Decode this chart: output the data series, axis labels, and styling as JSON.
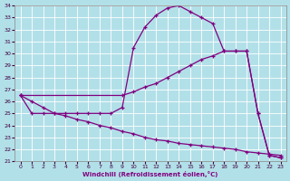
{
  "xlabel": "Windchill (Refroidissement éolien,°C)",
  "bg_color": "#b2e0e8",
  "line_color": "#800080",
  "grid_color": "#ffffff",
  "xlim": [
    -0.5,
    23.5
  ],
  "ylim": [
    21,
    34
  ],
  "yticks": [
    21,
    22,
    23,
    24,
    25,
    26,
    27,
    28,
    29,
    30,
    31,
    32,
    33,
    34
  ],
  "xticks": [
    0,
    1,
    2,
    3,
    4,
    5,
    6,
    7,
    8,
    9,
    10,
    11,
    12,
    13,
    14,
    15,
    16,
    17,
    18,
    19,
    20,
    21,
    22,
    23
  ],
  "lines": [
    {
      "x": [
        0,
        1,
        2,
        3,
        4,
        5,
        6,
        7,
        8,
        9,
        10,
        11,
        12,
        13,
        14,
        15,
        16,
        17,
        18,
        19,
        20,
        21,
        22,
        23
      ],
      "y": [
        26.5,
        25.0,
        25.0,
        25.0,
        25.0,
        25.0,
        25.0,
        25.0,
        25.0,
        25.5,
        30.5,
        32.2,
        33.2,
        33.8,
        34.0,
        33.5,
        33.0,
        32.5,
        30.2,
        30.2,
        30.2,
        25.0,
        21.5,
        21.3
      ]
    },
    {
      "x": [
        0,
        9,
        10,
        11,
        12,
        13,
        14,
        15,
        16,
        17,
        18,
        19,
        20,
        21,
        22,
        23
      ],
      "y": [
        26.5,
        26.5,
        26.8,
        27.2,
        27.5,
        28.0,
        28.5,
        29.0,
        29.5,
        29.8,
        30.2,
        30.2,
        30.2,
        25.0,
        21.5,
        21.3
      ]
    },
    {
      "x": [
        0,
        1,
        2,
        3,
        4,
        5,
        6,
        7,
        8,
        9,
        10,
        11,
        12,
        13,
        14,
        15,
        16,
        17,
        18,
        19,
        20,
        21,
        22,
        23
      ],
      "y": [
        26.5,
        26.0,
        25.5,
        25.0,
        24.8,
        24.5,
        24.3,
        24.0,
        23.8,
        23.5,
        23.3,
        23.0,
        22.8,
        22.7,
        22.5,
        22.4,
        22.3,
        22.2,
        22.1,
        22.0,
        21.8,
        21.7,
        21.6,
        21.5
      ]
    }
  ]
}
